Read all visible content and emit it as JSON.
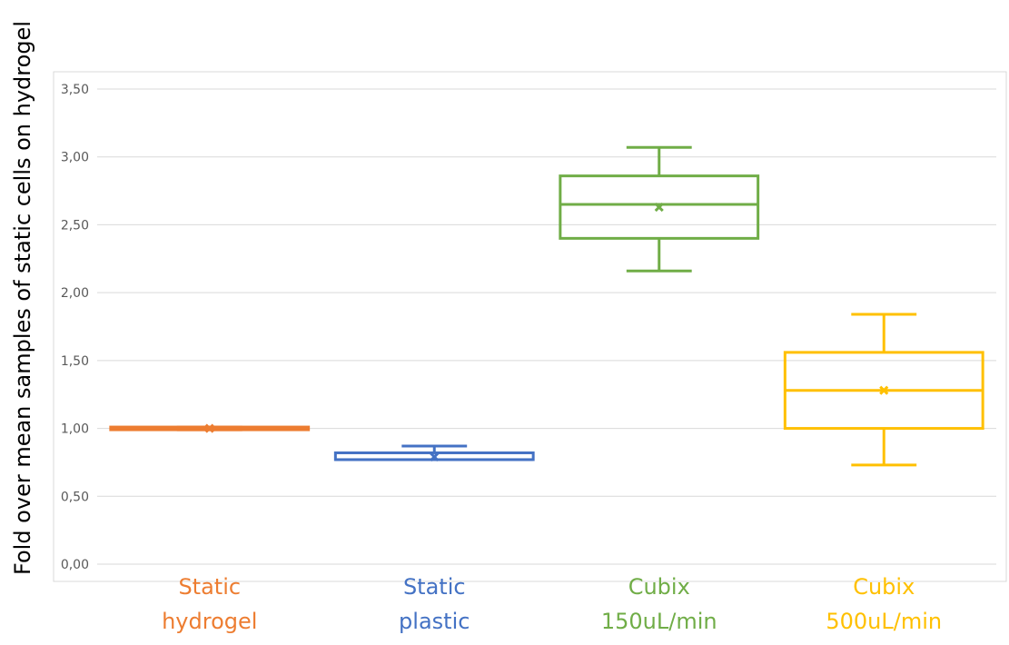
{
  "chart_data": {
    "type": "box",
    "ylabel": "Fold over mean samples of static cells on hydrogel",
    "xlabel": "",
    "title": "",
    "ylim": [
      0,
      3.5
    ],
    "ytick_step": 0.5,
    "ytick_labels": [
      "0,00",
      "0,50",
      "1,00",
      "1,50",
      "2,00",
      "2,50",
      "3,00",
      "3,50"
    ],
    "grid": true,
    "categories": [
      {
        "lines": [
          "Static",
          "hydrogel"
        ],
        "color": "#ED7D31",
        "min": 0.99,
        "q1": 0.99,
        "median": 1.0,
        "q3": 1.01,
        "max": 1.01,
        "mean": 1.0
      },
      {
        "lines": [
          "Static",
          "plastic"
        ],
        "color": "#4472C4",
        "min": 0.77,
        "q1": 0.77,
        "median": 0.77,
        "q3": 0.82,
        "max": 0.87,
        "mean": 0.79
      },
      {
        "lines": [
          "Cubix",
          "150uL/min"
        ],
        "color": "#70AD47",
        "min": 2.16,
        "q1": 2.4,
        "median": 2.65,
        "q3": 2.86,
        "max": 3.07,
        "mean": 2.63
      },
      {
        "lines": [
          "Cubix",
          "500uL/min"
        ],
        "color": "#FFC000",
        "min": 0.73,
        "q1": 1.0,
        "median": 1.28,
        "q3": 1.56,
        "max": 1.84,
        "mean": 1.28
      }
    ]
  }
}
